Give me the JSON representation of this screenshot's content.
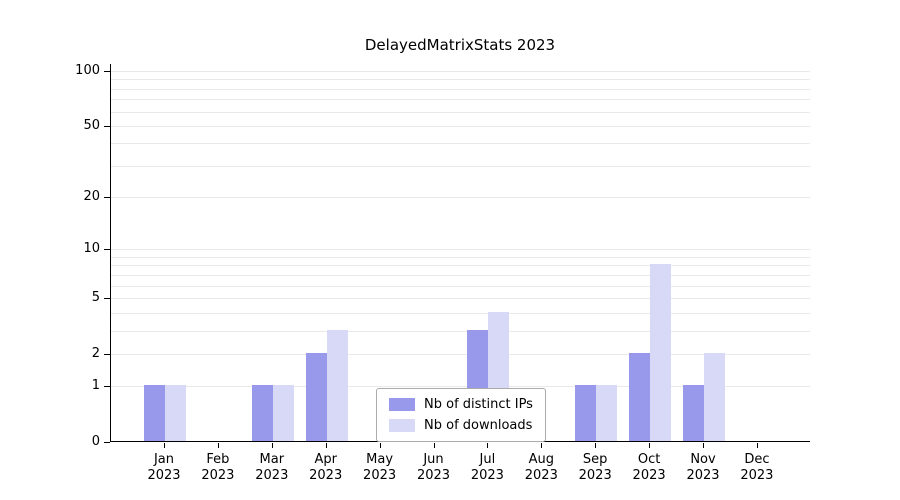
{
  "title": "DelayedMatrixStats 2023",
  "chart_data": {
    "type": "bar",
    "title": "DelayedMatrixStats 2023",
    "categories": [
      "Jan",
      "Feb",
      "Mar",
      "Apr",
      "May",
      "Jun",
      "Jul",
      "Aug",
      "Sep",
      "Oct",
      "Nov",
      "Dec"
    ],
    "year": "2023",
    "series": [
      {
        "name": "Nb of distinct IPs",
        "color": "#9999ec",
        "values": [
          1,
          0,
          1,
          2,
          0,
          0,
          3,
          0,
          1,
          2,
          1,
          0
        ]
      },
      {
        "name": "Nb of downloads",
        "color": "#d8d8f7",
        "values": [
          1,
          0,
          1,
          3,
          0,
          0,
          4,
          0,
          1,
          8,
          2,
          0
        ]
      }
    ],
    "yscale": "log1p",
    "ylim": [
      0,
      100
    ],
    "yticks": [
      0,
      1,
      2,
      5,
      10,
      20,
      50,
      100
    ],
    "gridlines": [
      1,
      2,
      3,
      4,
      5,
      6,
      7,
      8,
      9,
      10,
      20,
      30,
      40,
      50,
      60,
      70,
      80,
      90,
      100
    ],
    "grid": "horizontal",
    "legend_position": "bottom-center"
  }
}
